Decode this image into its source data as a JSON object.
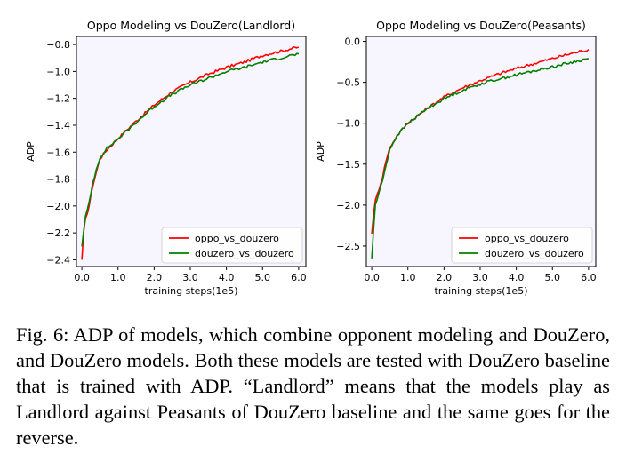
{
  "chart_data": [
    {
      "type": "line",
      "title": "Oppo Modeling vs DouZero(Landlord)",
      "xlabel": "training steps(1e5)",
      "ylabel": "ADP",
      "xlim": [
        -0.15,
        6.2
      ],
      "ylim": [
        -2.45,
        -0.74
      ],
      "xticks": [
        "0.0",
        "1.0",
        "2.0",
        "3.0",
        "4.0",
        "5.0",
        "6.0"
      ],
      "yticks": [
        "−0.8",
        "−1.0",
        "−1.2",
        "−1.4",
        "−1.6",
        "−1.8",
        "−2.0",
        "−2.2",
        "−2.4"
      ],
      "grid": false,
      "legend": "lower-right",
      "series": [
        {
          "name": "oppo_vs_douzero",
          "color": "#ff0000",
          "x": [
            0.0,
            0.05,
            0.1,
            0.2,
            0.3,
            0.4,
            0.5,
            0.7,
            1.0,
            1.3,
            1.5,
            2.0,
            2.5,
            3.0,
            3.5,
            4.0,
            4.5,
            5.0,
            5.5,
            5.8,
            6.0
          ],
          "y": [
            -2.4,
            -2.2,
            -2.1,
            -2.0,
            -1.85,
            -1.75,
            -1.65,
            -1.58,
            -1.5,
            -1.42,
            -1.37,
            -1.25,
            -1.15,
            -1.08,
            -1.02,
            -0.97,
            -0.93,
            -0.88,
            -0.85,
            -0.83,
            -0.82
          ]
        },
        {
          "name": "douzero_vs_douzero",
          "color": "#008000",
          "x": [
            0.0,
            0.05,
            0.1,
            0.2,
            0.3,
            0.4,
            0.5,
            0.7,
            1.0,
            1.3,
            1.5,
            2.0,
            2.5,
            3.0,
            3.5,
            4.0,
            4.5,
            5.0,
            5.5,
            5.8,
            6.0
          ],
          "y": [
            -2.3,
            -2.18,
            -2.08,
            -1.98,
            -1.83,
            -1.73,
            -1.64,
            -1.57,
            -1.5,
            -1.43,
            -1.38,
            -1.26,
            -1.17,
            -1.1,
            -1.05,
            -1.0,
            -0.97,
            -0.93,
            -0.9,
            -0.88,
            -0.87
          ]
        }
      ]
    },
    {
      "type": "line",
      "title": "Oppo Modeling vs DouZero(Peasants)",
      "xlabel": "training steps(1e5)",
      "ylabel": "ADP",
      "xlim": [
        -0.15,
        6.2
      ],
      "ylim": [
        -2.75,
        0.06
      ],
      "xticks": [
        "0.0",
        "1.0",
        "2.0",
        "3.0",
        "4.0",
        "5.0",
        "6.0"
      ],
      "yticks": [
        "0.0",
        "−0.5",
        "−1.0",
        "−1.5",
        "−2.0",
        "−2.5"
      ],
      "grid": false,
      "legend": "lower-right",
      "series": [
        {
          "name": "oppo_vs_douzero",
          "color": "#ff0000",
          "x": [
            0.0,
            0.05,
            0.1,
            0.2,
            0.3,
            0.4,
            0.5,
            0.7,
            1.0,
            1.3,
            1.5,
            2.0,
            2.5,
            3.0,
            3.5,
            4.0,
            4.5,
            5.0,
            5.5,
            5.8,
            6.0
          ],
          "y": [
            -2.35,
            -2.1,
            -1.95,
            -1.8,
            -1.65,
            -1.45,
            -1.3,
            -1.15,
            -1.0,
            -0.9,
            -0.83,
            -0.68,
            -0.57,
            -0.48,
            -0.4,
            -0.33,
            -0.27,
            -0.21,
            -0.15,
            -0.12,
            -0.1
          ]
        },
        {
          "name": "douzero_vs_douzero",
          "color": "#008000",
          "x": [
            0.0,
            0.05,
            0.1,
            0.2,
            0.3,
            0.4,
            0.5,
            0.7,
            1.0,
            1.3,
            1.5,
            2.0,
            2.5,
            3.0,
            3.5,
            4.0,
            4.5,
            5.0,
            5.5,
            5.8,
            6.0
          ],
          "y": [
            -2.65,
            -2.3,
            -2.0,
            -1.85,
            -1.7,
            -1.5,
            -1.32,
            -1.15,
            -1.0,
            -0.9,
            -0.83,
            -0.7,
            -0.6,
            -0.52,
            -0.46,
            -0.41,
            -0.36,
            -0.31,
            -0.26,
            -0.23,
            -0.21
          ]
        }
      ]
    }
  ],
  "caption": {
    "label": "Fig. 6:",
    "text": "ADP of models, which combine opponent modeling and DouZero, and DouZero models. Both these models are tested with DouZero baseline that is trained with ADP. “Landlord” means that the models play as Landlord against Peasants of DouZero baseline and the same goes for the reverse."
  }
}
